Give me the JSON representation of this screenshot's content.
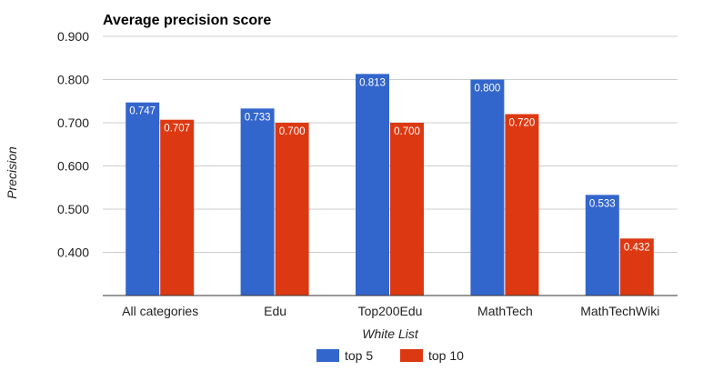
{
  "chart_data": {
    "type": "bar",
    "title": "Average precision score",
    "xlabel": "White List",
    "ylabel": "Precision",
    "categories": [
      "All categories",
      "Edu",
      "Top200Edu",
      "MathTech",
      "MathTechWiki"
    ],
    "series": [
      {
        "name": "top 5",
        "color": "#3366cc",
        "values": [
          0.747,
          0.733,
          0.813,
          0.8,
          0.533
        ],
        "labels": [
          "0.747",
          "0.733",
          "0.813",
          "0.800",
          "0.533"
        ]
      },
      {
        "name": "top 10",
        "color": "#dc3912",
        "values": [
          0.707,
          0.7,
          0.7,
          0.72,
          0.432
        ],
        "labels": [
          "0.707",
          "0.700",
          "0.700",
          "0.720",
          "0.432"
        ]
      }
    ],
    "ylim": [
      0.3,
      0.9
    ],
    "yticks": [
      0.4,
      0.5,
      0.6,
      0.7,
      0.8,
      0.9
    ],
    "ytick_labels": [
      "0.400",
      "0.500",
      "0.600",
      "0.700",
      "0.800",
      "0.900"
    ],
    "grid": true,
    "legend_position": "bottom"
  }
}
